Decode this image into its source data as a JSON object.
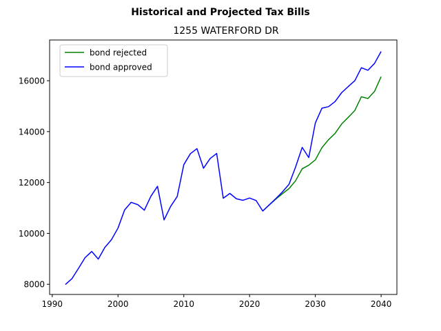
{
  "chart_data": {
    "type": "line",
    "suptitle": "Historical and Projected Tax Bills",
    "title": "1255 WATERFORD DR",
    "xlabel": "",
    "ylabel": "",
    "xlim": [
      1989.6,
      2042.4
    ],
    "ylim": [
      7600,
      17600
    ],
    "xticks": [
      1990,
      2000,
      2010,
      2020,
      2030,
      2040
    ],
    "yticks": [
      8000,
      10000,
      12000,
      14000,
      16000
    ],
    "grid": false,
    "legend_position": "top-left",
    "series": [
      {
        "name": "bond rejected",
        "color": "#008000",
        "x": [
          2022,
          2023,
          2024,
          2025,
          2026,
          2027,
          2028,
          2029,
          2030,
          2031,
          2032,
          2033,
          2034,
          2035,
          2036,
          2037,
          2038,
          2039,
          2040
        ],
        "values": [
          10880,
          11120,
          11350,
          11560,
          11760,
          12070,
          12540,
          12680,
          12890,
          13370,
          13680,
          13930,
          14300,
          14560,
          14830,
          15370,
          15300,
          15580,
          16160
        ]
      },
      {
        "name": "bond approved",
        "color": "#0000ff",
        "x": [
          1992,
          1993,
          1994,
          1995,
          1996,
          1997,
          1998,
          1999,
          2000,
          2001,
          2002,
          2003,
          2004,
          2005,
          2006,
          2007,
          2008,
          2009,
          2010,
          2011,
          2012,
          2013,
          2014,
          2015,
          2016,
          2017,
          2018,
          2019,
          2020,
          2021,
          2022,
          2023,
          2024,
          2025,
          2026,
          2027,
          2028,
          2029,
          2030,
          2031,
          2032,
          2033,
          2034,
          2035,
          2036,
          2037,
          2038,
          2039,
          2040
        ],
        "values": [
          7990,
          8220,
          8630,
          9050,
          9290,
          8990,
          9450,
          9750,
          10210,
          10920,
          11220,
          11130,
          10910,
          11460,
          11850,
          10530,
          11060,
          11450,
          12700,
          13130,
          13330,
          12560,
          12940,
          13140,
          11380,
          11570,
          11360,
          11300,
          11390,
          11290,
          10880,
          11120,
          11370,
          11630,
          11930,
          12610,
          13380,
          12980,
          14340,
          14920,
          14980,
          15180,
          15530,
          15770,
          16000,
          16510,
          16410,
          16680,
          17150
        ]
      }
    ]
  }
}
